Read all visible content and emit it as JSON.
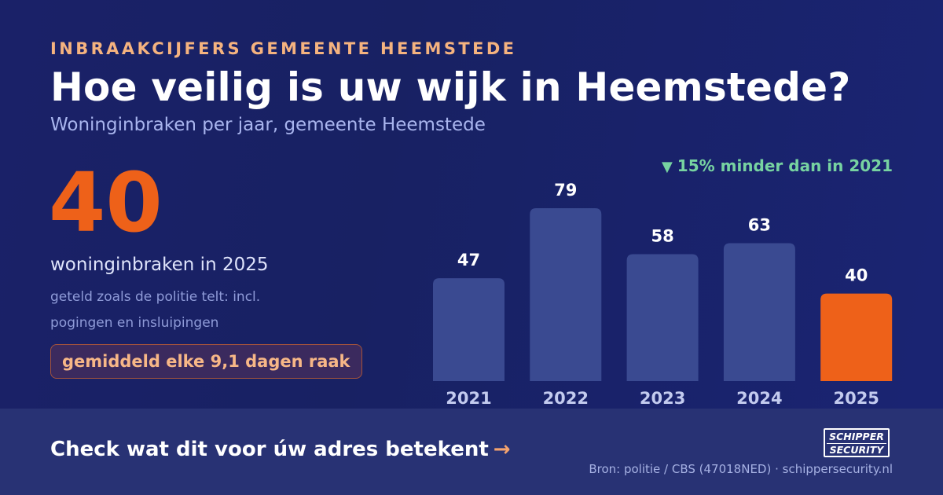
{
  "header": {
    "kicker": "INBRAAKCIJFERS GEMEENTE HEEMSTEDE",
    "title": "Hoe veilig is uw wijk in Heemstede?",
    "subtitle": "Woninginbraken per jaar, gemeente Heemstede"
  },
  "highlight": {
    "number": "40",
    "caption": "woninginbraken in 2025",
    "note": "geteld zoals de politie telt: incl. pogingen en insluipingen",
    "pill": "gemiddeld elke 9,1 dagen raak"
  },
  "trend": {
    "arrow": "▼",
    "text": "15% minder dan in 2021",
    "color": "#77d3a1"
  },
  "chart_data": {
    "type": "bar",
    "categories": [
      "2021",
      "2022",
      "2023",
      "2024",
      "2025"
    ],
    "values": [
      47,
      79,
      58,
      63,
      40
    ],
    "title": "",
    "xlabel": "",
    "ylabel": "",
    "ylim": [
      0,
      79
    ],
    "grid": false,
    "bar_color": "#3a4a91",
    "highlight_color": "#ee6119",
    "highlight_index": 4
  },
  "footer": {
    "cta": "Check wat dit voor úw adres betekent",
    "cta_arrow": "→",
    "logo_line1": "SCHIPPER",
    "logo_line2": "SECURITY",
    "source": "Bron: politie / CBS (47018NED) · schippersecurity.nl"
  },
  "colors": {
    "background": "#1a2168",
    "accent": "#ee6119",
    "kicker": "#f5b37f"
  }
}
